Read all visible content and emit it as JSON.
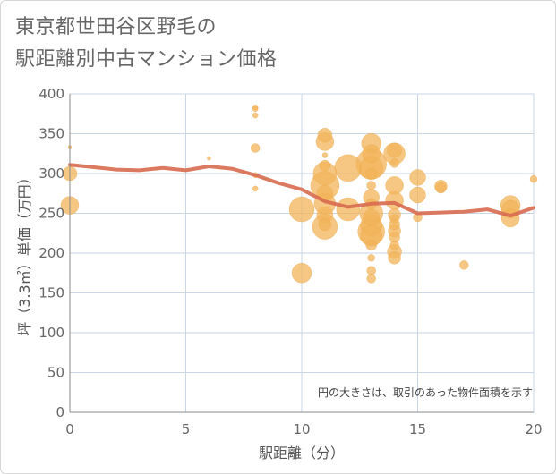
{
  "title_lines": [
    "東京都世田谷区野毛の",
    "駅距離別中古マンション価格"
  ],
  "chart_data": {
    "type": "scatter",
    "title": "東京都世田谷区野毛の駅距離別中古マンション価格",
    "xlabel": "駅距離（分）",
    "ylabel": "坪（3.3㎡）単価（万円）",
    "xlim": [
      0,
      20
    ],
    "ylim": [
      0,
      400
    ],
    "x_ticks": [
      0,
      5,
      10,
      15,
      20
    ],
    "y_ticks": [
      0,
      50,
      100,
      150,
      200,
      250,
      300,
      350,
      400
    ],
    "grid": true,
    "annotation": "円の大きさは、取引のあった物件面積を示す",
    "colors": {
      "bubble": "#f2b45a",
      "trend": "#d86a50",
      "grid": "#c9d6e3",
      "axis": "#666666"
    },
    "scatter_points": [
      {
        "x": 0,
        "y": 333,
        "s": 2
      },
      {
        "x": 0,
        "y": 300,
        "s": 8
      },
      {
        "x": 0,
        "y": 260,
        "s": 10
      },
      {
        "x": 6,
        "y": 319,
        "s": 2
      },
      {
        "x": 8,
        "y": 383,
        "s": 3
      },
      {
        "x": 8,
        "y": 381,
        "s": 3
      },
      {
        "x": 8,
        "y": 373,
        "s": 3
      },
      {
        "x": 8,
        "y": 332,
        "s": 5
      },
      {
        "x": 8,
        "y": 298,
        "s": 3
      },
      {
        "x": 8,
        "y": 281,
        "s": 3
      },
      {
        "x": 10,
        "y": 255,
        "s": 14
      },
      {
        "x": 10,
        "y": 175,
        "s": 11
      },
      {
        "x": 11,
        "y": 348,
        "s": 8
      },
      {
        "x": 11,
        "y": 340,
        "s": 10
      },
      {
        "x": 11,
        "y": 323,
        "s": 3
      },
      {
        "x": 11,
        "y": 310,
        "s": 6
      },
      {
        "x": 11,
        "y": 300,
        "s": 13
      },
      {
        "x": 11,
        "y": 285,
        "s": 16
      },
      {
        "x": 11,
        "y": 275,
        "s": 9
      },
      {
        "x": 11,
        "y": 262,
        "s": 12
      },
      {
        "x": 11,
        "y": 248,
        "s": 9
      },
      {
        "x": 11,
        "y": 233,
        "s": 14
      },
      {
        "x": 11,
        "y": 236,
        "s": 7
      },
      {
        "x": 12,
        "y": 307,
        "s": 15
      },
      {
        "x": 12,
        "y": 255,
        "s": 13
      },
      {
        "x": 13,
        "y": 338,
        "s": 11
      },
      {
        "x": 13,
        "y": 325,
        "s": 10
      },
      {
        "x": 13,
        "y": 312,
        "s": 17
      },
      {
        "x": 13,
        "y": 307,
        "s": 13
      },
      {
        "x": 13,
        "y": 300,
        "s": 6
      },
      {
        "x": 13,
        "y": 285,
        "s": 5
      },
      {
        "x": 13,
        "y": 270,
        "s": 9
      },
      {
        "x": 13,
        "y": 262,
        "s": 6
      },
      {
        "x": 13,
        "y": 250,
        "s": 13
      },
      {
        "x": 13,
        "y": 245,
        "s": 9
      },
      {
        "x": 13,
        "y": 235,
        "s": 12
      },
      {
        "x": 13,
        "y": 227,
        "s": 15
      },
      {
        "x": 13,
        "y": 222,
        "s": 12
      },
      {
        "x": 13,
        "y": 210,
        "s": 6
      },
      {
        "x": 13,
        "y": 194,
        "s": 4
      },
      {
        "x": 13,
        "y": 178,
        "s": 5
      },
      {
        "x": 13,
        "y": 168,
        "s": 5
      },
      {
        "x": 14,
        "y": 329,
        "s": 8
      },
      {
        "x": 14,
        "y": 325,
        "s": 12
      },
      {
        "x": 14,
        "y": 313,
        "s": 5
      },
      {
        "x": 14,
        "y": 285,
        "s": 10
      },
      {
        "x": 14,
        "y": 266,
        "s": 10
      },
      {
        "x": 14,
        "y": 248,
        "s": 7
      },
      {
        "x": 14,
        "y": 243,
        "s": 5
      },
      {
        "x": 14,
        "y": 236,
        "s": 6
      },
      {
        "x": 14,
        "y": 228,
        "s": 7
      },
      {
        "x": 14,
        "y": 220,
        "s": 6
      },
      {
        "x": 14,
        "y": 210,
        "s": 5
      },
      {
        "x": 14,
        "y": 202,
        "s": 8
      },
      {
        "x": 14,
        "y": 194,
        "s": 7
      },
      {
        "x": 15,
        "y": 295,
        "s": 9
      },
      {
        "x": 15,
        "y": 273,
        "s": 9
      },
      {
        "x": 15,
        "y": 245,
        "s": 5
      },
      {
        "x": 16,
        "y": 284,
        "s": 7
      },
      {
        "x": 16,
        "y": 282,
        "s": 6
      },
      {
        "x": 17,
        "y": 185,
        "s": 5
      },
      {
        "x": 19,
        "y": 260,
        "s": 11
      },
      {
        "x": 19,
        "y": 255,
        "s": 10
      },
      {
        "x": 19,
        "y": 244,
        "s": 10
      },
      {
        "x": 20,
        "y": 293,
        "s": 4
      }
    ],
    "trend_line": {
      "x": [
        0,
        1,
        2,
        3,
        4,
        5,
        6,
        7,
        8,
        9,
        10,
        11,
        12,
        13,
        14,
        15,
        16,
        17,
        18,
        19,
        20
      ],
      "y": [
        311,
        308,
        305,
        304,
        307,
        304,
        309,
        306,
        298,
        288,
        280,
        265,
        258,
        262,
        263,
        250,
        251,
        252,
        255,
        247,
        257
      ]
    }
  }
}
